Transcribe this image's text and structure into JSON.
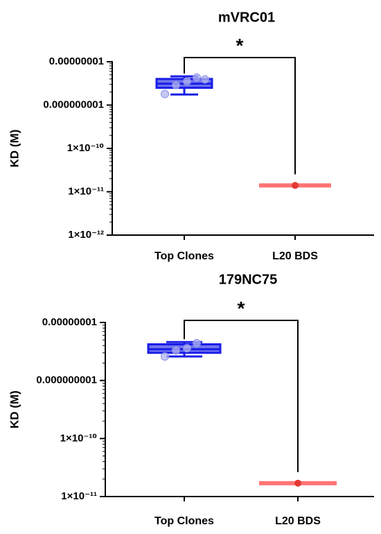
{
  "colors": {
    "top_clones": "#1a1ee6",
    "top_clones_fill": "#6f74ee",
    "top_clones_point": "#b3b5ee",
    "l20_bds": "#ff5a5a",
    "l20_bds_point": "#e53935",
    "axis": "#000000"
  },
  "chart_data": [
    {
      "type": "box",
      "title": "mVRC01",
      "ylabel": "KD (M)",
      "yscale": "log",
      "ylim": [
        1e-12,
        1e-08
      ],
      "yticks": [
        {
          "value": 1e-08,
          "label": "0.00000001"
        },
        {
          "value": 1e-09,
          "label": "0.000000001"
        },
        {
          "value": 1e-10,
          "label": "1×10⁻¹⁰"
        },
        {
          "value": 1e-11,
          "label": "1×10⁻¹¹"
        },
        {
          "value": 1e-12,
          "label": "1×10⁻¹²"
        }
      ],
      "categories": [
        "Top Clones",
        "L20 BDS"
      ],
      "series": [
        {
          "category": "Top Clones",
          "whisker_low": 1.75e-09,
          "q1": 2.5e-09,
          "median": 3.1e-09,
          "q3": 4e-09,
          "whisker_high": 4.6e-09,
          "points": [
            1.8e-09,
            2.9e-09,
            3.5e-09,
            4.3e-09,
            3.9e-09
          ]
        },
        {
          "category": "L20 BDS",
          "whisker_low": 1.4e-11,
          "q1": 1.4e-11,
          "median": 1.4e-11,
          "q3": 1.4e-11,
          "whisker_high": 1.4e-11,
          "points": [
            1.4e-11
          ]
        }
      ],
      "annotation": "*"
    },
    {
      "type": "box",
      "title": "179NC75",
      "ylabel": "KD (M)",
      "yscale": "log",
      "ylim": [
        1e-11,
        1e-08
      ],
      "yticks": [
        {
          "value": 1e-08,
          "label": "0.00000001"
        },
        {
          "value": 1e-09,
          "label": "0.000000001"
        },
        {
          "value": 1e-10,
          "label": "1×10⁻¹⁰"
        },
        {
          "value": 1e-11,
          "label": "1×10⁻¹¹"
        }
      ],
      "categories": [
        "Top Clones",
        "L20 BDS"
      ],
      "series": [
        {
          "category": "Top Clones",
          "whisker_low": 2.6e-09,
          "q1": 3e-09,
          "median": 3.45e-09,
          "q3": 4.2e-09,
          "whisker_high": 4.6e-09,
          "points": [
            2.6e-09,
            3.3e-09,
            3.6e-09,
            4.4e-09
          ]
        },
        {
          "category": "L20 BDS",
          "whisker_low": 1.7e-11,
          "q1": 1.7e-11,
          "median": 1.7e-11,
          "q3": 1.7e-11,
          "whisker_high": 1.7e-11,
          "points": [
            1.7e-11
          ]
        }
      ],
      "annotation": "*"
    }
  ]
}
